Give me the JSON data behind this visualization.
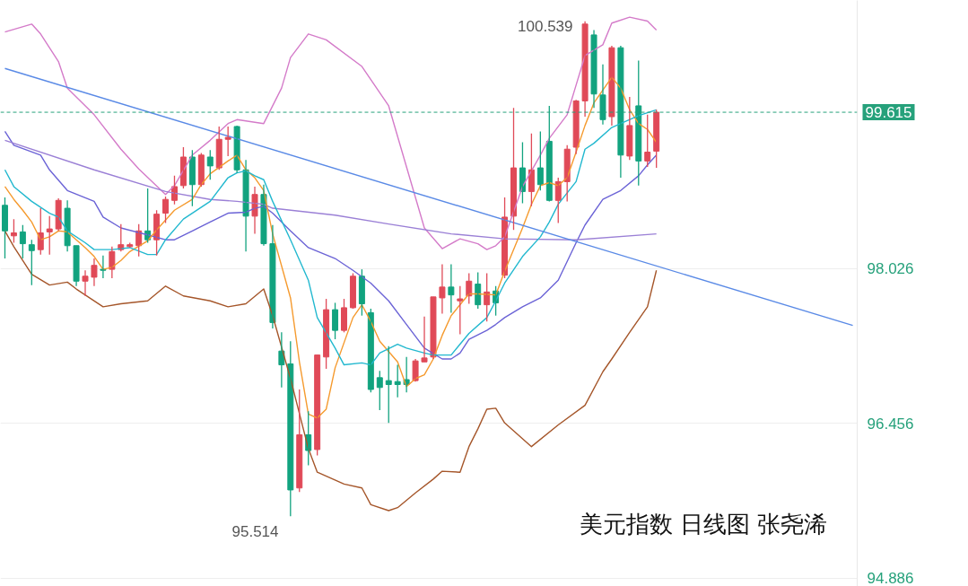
{
  "chart_data": {
    "type": "candlestick",
    "title": "美元指数 日线图 张尧浠",
    "categories": [
      null,
      null,
      null,
      null,
      null,
      null,
      null,
      null,
      null,
      null,
      null,
      null,
      null,
      null,
      null,
      null,
      null,
      null,
      null,
      null,
      null,
      null,
      null,
      null,
      null,
      null,
      null,
      null,
      null,
      null,
      null,
      null,
      null,
      null,
      null,
      null,
      null,
      null,
      null,
      null,
      null,
      null,
      null,
      null,
      null,
      null,
      null,
      null,
      null,
      null,
      null,
      null,
      null,
      null,
      null,
      null,
      null,
      null,
      null,
      null,
      null,
      null,
      null,
      null,
      null,
      null,
      null,
      null,
      null,
      null,
      null,
      null,
      null,
      null,
      null,
      null,
      null,
      null,
      null,
      null,
      null,
      null,
      null,
      null,
      null,
      null,
      null,
      null,
      null,
      null,
      null,
      null,
      null,
      null,
      null,
      null
    ],
    "ohlc": [
      [
        98.67,
        98.75,
        98.13,
        98.41
      ],
      [
        98.36,
        98.53,
        98.29,
        98.39
      ],
      [
        98.4,
        98.47,
        98.13,
        98.28
      ],
      [
        98.27,
        98.32,
        97.86,
        98.21
      ],
      [
        98.22,
        98.64,
        98.17,
        98.39
      ],
      [
        98.4,
        98.56,
        98.17,
        98.43
      ],
      [
        98.43,
        98.74,
        98.41,
        98.72
      ],
      [
        98.64,
        98.72,
        98.2,
        98.26
      ],
      [
        98.26,
        98.26,
        97.85,
        97.9
      ],
      [
        97.9,
        98.01,
        97.75,
        97.95
      ],
      [
        97.94,
        98.13,
        97.85,
        98.06
      ],
      [
        98.02,
        98.16,
        97.93,
        98.01
      ],
      [
        98.02,
        98.25,
        97.93,
        98.2
      ],
      [
        98.22,
        98.48,
        98.2,
        98.27
      ],
      [
        98.25,
        98.29,
        98.24,
        98.27
      ],
      [
        98.26,
        98.48,
        98.15,
        98.41
      ],
      [
        98.41,
        98.84,
        98.29,
        98.32
      ],
      [
        98.32,
        98.62,
        98.16,
        98.58
      ],
      [
        98.59,
        98.76,
        98.49,
        98.73
      ],
      [
        98.72,
        98.97,
        98.68,
        98.86
      ],
      [
        98.87,
        99.26,
        98.84,
        99.16
      ],
      [
        99.16,
        99.23,
        98.66,
        98.88
      ],
      [
        98.88,
        99.2,
        98.86,
        99.18
      ],
      [
        99.16,
        99.23,
        98.93,
        99.07
      ],
      [
        99.05,
        99.47,
        99.03,
        99.34
      ],
      [
        99.34,
        99.47,
        99.17,
        99.36
      ],
      [
        99.47,
        99.48,
        99.0,
        99.03
      ],
      [
        99.03,
        99.13,
        98.2,
        98.56
      ],
      [
        98.56,
        98.86,
        98.38,
        98.78
      ],
      [
        98.78,
        98.88,
        98.26,
        98.28
      ],
      [
        98.28,
        98.47,
        97.42,
        97.48
      ],
      [
        97.19,
        97.38,
        96.82,
        97.05
      ],
      [
        97.06,
        97.29,
        95.514,
        95.78
      ],
      [
        95.8,
        96.8,
        95.76,
        96.34
      ],
      [
        96.34,
        96.58,
        96.03,
        96.18
      ],
      [
        96.19,
        97.15,
        96.13,
        97.15
      ],
      [
        97.13,
        97.72,
        97.01,
        97.61
      ],
      [
        97.61,
        97.68,
        97.31,
        97.4
      ],
      [
        97.4,
        97.72,
        97.38,
        97.63
      ],
      [
        97.63,
        97.98,
        97.62,
        97.95
      ],
      [
        97.95,
        98.02,
        97.55,
        97.67
      ],
      [
        97.58,
        97.62,
        96.77,
        96.8
      ],
      [
        96.92,
        96.99,
        96.59,
        96.82
      ],
      [
        96.89,
        97.24,
        96.46,
        96.85
      ],
      [
        96.88,
        97.05,
        96.72,
        96.85
      ],
      [
        96.9,
        97.13,
        96.77,
        96.85
      ],
      [
        96.89,
        97.11,
        96.88,
        97.09
      ],
      [
        97.08,
        97.54,
        97.08,
        97.12
      ],
      [
        97.13,
        97.74,
        97.11,
        97.74
      ],
      [
        97.73,
        98.07,
        97.57,
        97.84
      ],
      [
        97.84,
        98.07,
        97.58,
        97.76
      ],
      [
        97.7,
        97.85,
        97.36,
        97.72
      ],
      [
        97.75,
        97.98,
        97.67,
        97.9
      ],
      [
        97.87,
        97.99,
        97.62,
        97.66
      ],
      [
        97.66,
        97.98,
        97.49,
        97.79
      ],
      [
        97.8,
        97.85,
        97.55,
        97.68
      ],
      [
        97.96,
        98.75,
        97.93,
        98.55
      ],
      [
        98.56,
        99.66,
        98.42,
        99.05
      ],
      [
        99.05,
        99.31,
        98.69,
        98.81
      ],
      [
        98.81,
        99.4,
        98.66,
        99.03
      ],
      [
        99.05,
        99.42,
        98.82,
        98.88
      ],
      [
        99.32,
        99.68,
        98.71,
        98.72
      ],
      [
        98.72,
        98.95,
        98.49,
        98.91
      ],
      [
        98.91,
        99.28,
        98.71,
        99.24
      ],
      [
        99.26,
        99.74,
        99.19,
        99.73
      ],
      [
        99.73,
        100.539,
        99.57,
        100.51
      ],
      [
        100.4,
        100.45,
        99.66,
        99.8
      ],
      [
        99.79,
        100.1,
        99.49,
        99.54
      ],
      [
        99.57,
        100.29,
        99.48,
        100.27
      ],
      [
        100.27,
        100.29,
        98.95,
        99.18
      ],
      [
        99.17,
        99.77,
        99.13,
        99.48
      ],
      [
        99.68,
        100.14,
        98.87,
        99.12
      ],
      [
        99.12,
        99.59,
        99.06,
        99.21
      ],
      [
        99.22,
        99.64,
        99.05,
        99.615
      ],
      null,
      null,
      null,
      null,
      null,
      null,
      null,
      null,
      null,
      null,
      null,
      null,
      null,
      null,
      null,
      null,
      null,
      null,
      null,
      null,
      null,
      null
    ],
    "colors": [
      "#12a37f",
      "#e04a58",
      "#12a37f",
      "#12a37f",
      "#e04a58",
      "#e04a58",
      "#e04a58",
      "#12a37f",
      "#12a37f",
      "#e04a58",
      "#e04a58",
      "#12a37f",
      "#e04a58",
      "#e04a58",
      "#e04a58",
      "#e04a58",
      "#12a37f",
      "#e04a58",
      "#e04a58",
      "#e04a58",
      "#e04a58",
      "#12a37f",
      "#e04a58",
      "#12a37f",
      "#e04a58",
      "#e04a58",
      "#12a37f",
      "#12a37f",
      "#e04a58",
      "#12a37f",
      "#12a37f",
      "#12a37f",
      "#12a37f",
      "#e04a58",
      "#12a37f",
      "#e04a58",
      "#e04a58",
      "#12a37f",
      "#e04a58",
      "#e04a58",
      "#12a37f",
      "#12a37f",
      "#12a37f",
      "#12a37f",
      "#12a37f",
      "#12a37f",
      "#e04a58",
      "#e04a58",
      "#e04a58",
      "#e04a58",
      "#12a37f",
      "#e04a58",
      "#e04a58",
      "#12a37f",
      "#e04a58",
      "#12a37f",
      "#e04a58",
      "#e04a58",
      "#12a37f",
      "#e04a58",
      "#12a37f",
      "#12a37f",
      "#e04a58",
      "#e04a58",
      "#e04a58",
      "#e04a58",
      "#12a37f",
      "#12a37f",
      "#e04a58",
      "#12a37f",
      "#e04a58",
      "#12a37f",
      "#e04a58",
      "#e04a58",
      null,
      null,
      null,
      null,
      null,
      null,
      null,
      null,
      null,
      null,
      null,
      null,
      null,
      null,
      null,
      null,
      null,
      null,
      null,
      null,
      null,
      null
    ],
    "series": [
      {
        "type": "line",
        "color": "#d47bc9",
        "values": [
          100.43,
          null,
          null,
          100.51,
          100.41,
          null,
          100.13,
          99.86,
          null,
          null,
          99.59,
          null,
          null,
          99.24,
          null,
          99.04,
          null,
          null,
          98.78,
          98.87,
          null,
          99.18,
          null,
          99.33,
          null,
          99.5,
          99.54,
          null,
          null,
          99.5,
          null,
          99.86,
          100.17,
          null,
          100.41,
          null,
          100.35,
          null,
          null,
          null,
          100.08,
          null,
          null,
          99.68,
          null,
          99.06,
          null,
          98.44,
          null,
          98.23,
          null,
          98.33,
          null,
          98.28,
          98.22,
          98.26,
          98.35,
          null,
          98.86,
          null,
          99.18,
          99.35,
          null,
          99.59,
          99.89,
          100.19,
          null,
          100.3,
          100.52,
          null,
          100.58,
          null,
          100.54,
          100.45,
          null,
          null,
          null,
          null,
          null,
          null,
          null,
          null,
          null,
          null,
          null,
          null,
          null,
          null,
          null,
          null,
          null,
          null,
          null,
          null,
          null,
          null
        ]
      },
      {
        "type": "line",
        "color": "#a5562a",
        "values": [
          98.41,
          98.25,
          null,
          97.97,
          null,
          97.86,
          null,
          97.89,
          97.82,
          null,
          null,
          97.64,
          null,
          97.67,
          null,
          null,
          97.7,
          null,
          97.85,
          null,
          97.75,
          null,
          null,
          97.7,
          null,
          97.64,
          null,
          97.67,
          null,
          97.82,
          97.55,
          null,
          96.91,
          null,
          96.2,
          95.96,
          null,
          null,
          95.84,
          null,
          95.8,
          95.63,
          null,
          95.57,
          95.6,
          null,
          95.75,
          null,
          95.89,
          95.97,
          null,
          95.96,
          96.22,
          96.4,
          96.6,
          96.61,
          96.46,
          null,
          null,
          96.22,
          null,
          null,
          96.44,
          null,
          null,
          96.64,
          null,
          96.98,
          97.11,
          null,
          97.38,
          null,
          97.64,
          98.01,
          null,
          null,
          null,
          null,
          null,
          null,
          null,
          null,
          null,
          null,
          null,
          null,
          null,
          null,
          null,
          null,
          null,
          null,
          null,
          null,
          null,
          null
        ]
      },
      {
        "type": "line",
        "color": "#6b63d6",
        "values": [
          99.42,
          99.28,
          null,
          null,
          99.18,
          99.03,
          null,
          98.82,
          null,
          null,
          98.71,
          98.55,
          null,
          98.44,
          null,
          null,
          98.37,
          null,
          98.32,
          98.32,
          null,
          98.41,
          null,
          98.5,
          null,
          98.59,
          null,
          98.6,
          98.64,
          98.66,
          98.59,
          null,
          98.41,
          null,
          98.24,
          null,
          null,
          98.13,
          null,
          98.01,
          null,
          97.88,
          null,
          97.7,
          null,
          97.46,
          null,
          97.22,
          null,
          97.11,
          97.11,
          97.17,
          97.31,
          null,
          97.4,
          97.46,
          97.53,
          null,
          97.64,
          null,
          97.73,
          null,
          97.91,
          null,
          98.29,
          98.47,
          null,
          98.73,
          null,
          98.82,
          null,
          98.97,
          99.08,
          99.18,
          null,
          null,
          null,
          null,
          null,
          null,
          null,
          null,
          null,
          null,
          null,
          null,
          null,
          null,
          null,
          null,
          null,
          null,
          null,
          null,
          null,
          null
        ]
      },
      {
        "type": "line",
        "color": "#9b80d6",
        "values": [
          99.33,
          null,
          null,
          null,
          null,
          null,
          null,
          null,
          null,
          null,
          99.03,
          null,
          null,
          null,
          null,
          null,
          null,
          null,
          98.81,
          null,
          null,
          null,
          null,
          98.73,
          null,
          null,
          98.71,
          null,
          null,
          98.68,
          98.64,
          null,
          null,
          null,
          null,
          null,
          null,
          98.57,
          null,
          null,
          null,
          null,
          null,
          98.48,
          null,
          null,
          null,
          null,
          null,
          null,
          98.38,
          null,
          null,
          null,
          null,
          null,
          98.33,
          null,
          null,
          null,
          null,
          null,
          null,
          null,
          98.32,
          null,
          null,
          null,
          null,
          null,
          null,
          null,
          null,
          98.38,
          null,
          null,
          null,
          null,
          null,
          null,
          null,
          null,
          null,
          null,
          null,
          null,
          null,
          null,
          null,
          null,
          null,
          null,
          null,
          null,
          null,
          null
        ]
      },
      {
        "type": "line",
        "color": "#f59a2e",
        "values": [
          98.86,
          98.73,
          98.62,
          98.5,
          98.32,
          98.35,
          98.41,
          98.4,
          98.32,
          98.24,
          98.15,
          98.02,
          98.04,
          98.11,
          98.2,
          null,
          98.31,
          98.42,
          null,
          98.62,
          null,
          98.73,
          98.88,
          98.99,
          null,
          99.12,
          99.18,
          99.03,
          98.95,
          98.82,
          98.38,
          null,
          97.73,
          97.08,
          96.55,
          96.51,
          96.6,
          97.02,
          null,
          97.53,
          97.66,
          97.49,
          97.29,
          null,
          97.08,
          96.83,
          96.91,
          96.95,
          97.11,
          97.35,
          97.55,
          null,
          97.77,
          97.77,
          null,
          97.76,
          98.0,
          null,
          98.44,
          98.68,
          98.87,
          98.9,
          98.87,
          98.95,
          99.21,
          99.48,
          99.71,
          null,
          99.97,
          99.86,
          99.64,
          99.5,
          99.44,
          99.31,
          null,
          null,
          null,
          null,
          null,
          null,
          null,
          null,
          null,
          null,
          null,
          null,
          null,
          null,
          null,
          null,
          null,
          null,
          null,
          null,
          null,
          null
        ]
      },
      {
        "type": "line",
        "color": "#22b8cf",
        "values": [
          99.03,
          98.86,
          null,
          98.71,
          null,
          98.59,
          98.55,
          98.41,
          null,
          98.29,
          98.22,
          null,
          98.22,
          null,
          98.24,
          null,
          98.17,
          98.17,
          98.32,
          null,
          98.53,
          null,
          null,
          98.71,
          null,
          98.95,
          99.0,
          99.02,
          98.97,
          98.93,
          98.71,
          null,
          98.32,
          null,
          97.91,
          97.53,
          null,
          97.22,
          97.05,
          null,
          97.07,
          97.05,
          97.17,
          null,
          97.26,
          97.22,
          null,
          97.17,
          97.15,
          null,
          97.15,
          97.26,
          97.37,
          null,
          97.53,
          97.7,
          97.88,
          null,
          98.15,
          null,
          98.35,
          98.5,
          98.68,
          null,
          98.91,
          99.24,
          99.3,
          null,
          99.46,
          99.5,
          null,
          99.58,
          null,
          99.64,
          null,
          null,
          null,
          null,
          null,
          null,
          null,
          null,
          null,
          null,
          null,
          null,
          null,
          null,
          null,
          null,
          null,
          null,
          null,
          null,
          null,
          null
        ]
      },
      {
        "type": "line",
        "color": "#5a8ae6",
        "values": [
          100.06,
          null,
          null,
          null,
          null,
          null,
          null,
          null,
          null,
          null,
          null,
          null,
          null,
          null,
          null,
          null,
          null,
          null,
          null,
          null,
          null,
          null,
          null,
          null,
          null,
          null,
          null,
          null,
          null,
          null,
          null,
          null,
          null,
          null,
          null,
          null,
          null,
          null,
          null,
          null,
          null,
          null,
          null,
          null,
          null,
          null,
          null,
          null,
          null,
          null,
          null,
          null,
          null,
          null,
          null,
          null,
          null,
          null,
          null,
          null,
          null,
          null,
          null,
          null,
          null,
          null,
          null,
          null,
          null,
          null,
          null,
          null,
          null,
          null,
          null,
          null,
          null,
          null,
          null,
          null,
          null,
          null,
          null,
          null,
          null,
          null,
          null,
          null,
          null,
          null,
          null,
          null,
          null,
          null,
          null,
          97.45
        ]
      }
    ],
    "ylim": [
      94.8,
      100.75
    ],
    "yticks": [
      94.886,
      96.456,
      98.026
    ],
    "tick_labels": "y",
    "grid": "y",
    "line_style": "solid",
    "ref_lines": [
      {
        "axis": "y",
        "value": 99.615,
        "label": "99.615",
        "color": "#26a17b",
        "line_style": "dashed"
      }
    ],
    "annotations": [
      "100.539",
      "95.514"
    ]
  }
}
